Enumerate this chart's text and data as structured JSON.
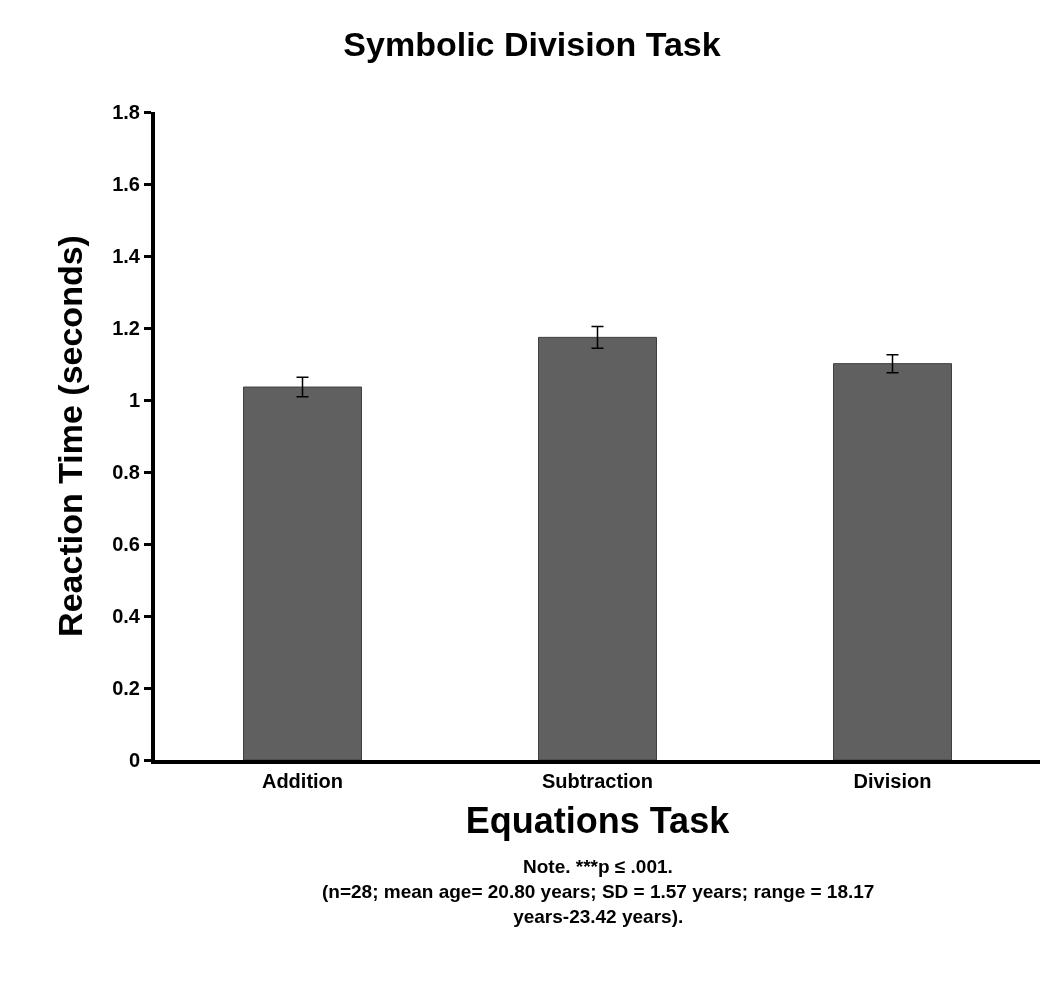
{
  "chart_data": {
    "type": "bar",
    "title": "Symbolic Division Task",
    "xlabel": "Equations Task",
    "ylabel": "Reaction Time (seconds)",
    "categories": [
      "Addition",
      "Subtraction",
      "Division"
    ],
    "values": [
      1.036,
      1.174,
      1.101
    ],
    "errors": [
      0.027,
      0.03,
      0.025
    ],
    "color": "#606060",
    "ylim": [
      0,
      1.8
    ],
    "yticks": [
      0,
      0.2,
      0.4,
      0.6,
      0.8,
      1,
      1.2,
      1.4,
      1.6,
      1.8
    ],
    "annotations": [
      "Note. ***p ≤ .001.",
      "(n=28; mean age= 20.80 years; SD = 1.57 years; range = 18.17 years-23.42 years)."
    ]
  }
}
